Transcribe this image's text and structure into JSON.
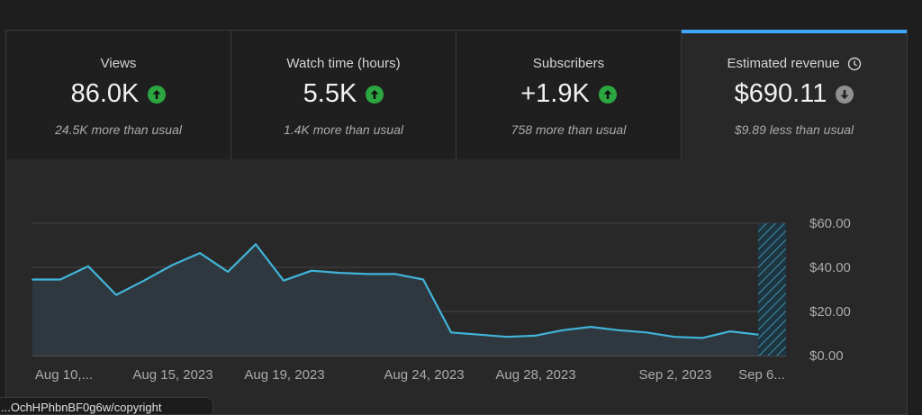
{
  "metrics": [
    {
      "title": "Views",
      "value": "86.0K",
      "trend": "up",
      "sub": "24.5K more than usual"
    },
    {
      "title": "Watch time (hours)",
      "value": "5.5K",
      "trend": "up",
      "sub": "1.4K more than usual"
    },
    {
      "title": "Subscribers",
      "value": "+1.9K",
      "trend": "up",
      "sub": "758 more than usual"
    },
    {
      "title": "Estimated revenue",
      "value": "$690.11",
      "trend": "down",
      "sub": "$9.89 less than usual"
    }
  ],
  "colors": {
    "accent": "#3ea6ff",
    "up": "#2ba640",
    "down": "#909090",
    "line": "#41b4d8"
  },
  "chart_data": {
    "type": "area",
    "title": "",
    "xlabel": "",
    "ylabel": "",
    "ylim": [
      0,
      60
    ],
    "y_ticks": [
      "$0.00",
      "$20.00",
      "$40.00",
      "$60.00"
    ],
    "x_ticks": [
      "Aug 10,...",
      "Aug 15, 2023",
      "Aug 19, 2023",
      "Aug 24, 2023",
      "Aug 28, 2023",
      "Sep 2, 2023",
      "Sep 6..."
    ],
    "series": [
      {
        "x": [
          "Aug 10",
          "Aug 11",
          "Aug 12",
          "Aug 13",
          "Aug 14",
          "Aug 15",
          "Aug 16",
          "Aug 17",
          "Aug 18",
          "Aug 19",
          "Aug 20",
          "Aug 21",
          "Aug 22",
          "Aug 23",
          "Aug 24",
          "Aug 25",
          "Aug 26",
          "Aug 27",
          "Aug 28",
          "Aug 29",
          "Aug 30",
          "Aug 31",
          "Sep 1",
          "Sep 2",
          "Sep 3",
          "Sep 4",
          "Sep 5",
          "Sep 6"
        ],
        "values": [
          34.5,
          34.5,
          40.5,
          27.5,
          34,
          41,
          46.5,
          38,
          50.5,
          34,
          38.5,
          37.5,
          37,
          37,
          34.5,
          10.5,
          9.5,
          8.5,
          9,
          11.5,
          13,
          11.5,
          10.5,
          8.5,
          8,
          11,
          9.5,
          null
        ]
      }
    ],
    "grid": true,
    "hatched_last_period": true
  },
  "url_tooltip": "...OchHPhbnBF0g6w/copyright"
}
